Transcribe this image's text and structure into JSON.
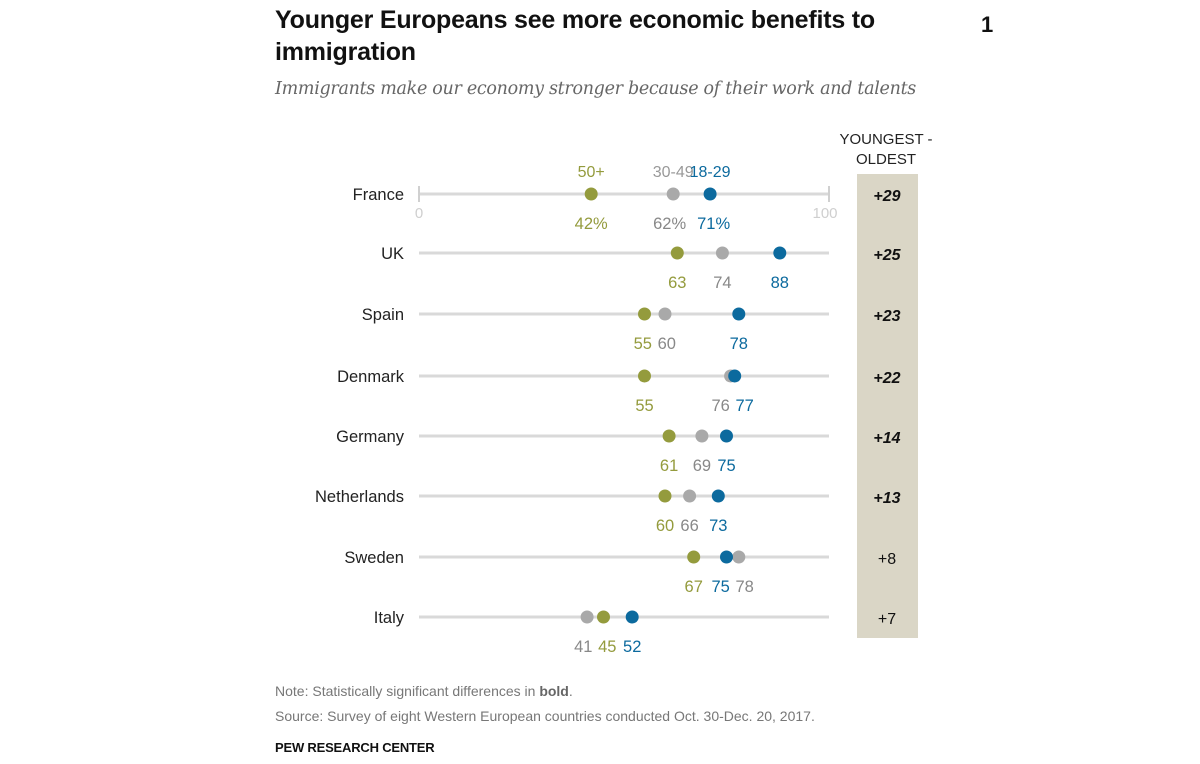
{
  "chart_data": {
    "type": "dot-plot",
    "title": "Younger Europeans see more economic benefits to immigration",
    "subtitle": "Immigrants make our economy stronger because of their work and talents",
    "xlim": [
      0,
      100
    ],
    "axis_ticks": [
      "0",
      "100"
    ],
    "diff_header": [
      "YOUNGEST -",
      "OLDEST"
    ],
    "series": [
      {
        "name": "50+",
        "key": "age50",
        "color": "#949b3d"
      },
      {
        "name": "30-49",
        "key": "age30",
        "color": "#a9a9a9"
      },
      {
        "name": "18-29",
        "key": "age18",
        "color": "#0c6a9e"
      }
    ],
    "categories": [
      "France",
      "UK",
      "Spain",
      "Denmark",
      "Germany",
      "Netherlands",
      "Sweden",
      "Italy"
    ],
    "rows": [
      {
        "country": "France",
        "age18": 71,
        "age30": 62,
        "age50": 42,
        "diff": "+29",
        "significant": true,
        "labels": {
          "age18": "71%",
          "age30": "62%",
          "age50": "42%"
        }
      },
      {
        "country": "UK",
        "age18": 88,
        "age30": 74,
        "age50": 63,
        "diff": "+25",
        "significant": true,
        "labels": {
          "age18": "88",
          "age30": "74",
          "age50": "63"
        }
      },
      {
        "country": "Spain",
        "age18": 78,
        "age30": 60,
        "age50": 55,
        "diff": "+23",
        "significant": true,
        "labels": {
          "age18": "78",
          "age30": "60",
          "age50": "55"
        }
      },
      {
        "country": "Denmark",
        "age18": 77,
        "age30": 76,
        "age50": 55,
        "diff": "+22",
        "significant": true,
        "labels": {
          "age18": "77",
          "age30": "76",
          "age50": "55"
        }
      },
      {
        "country": "Germany",
        "age18": 75,
        "age30": 69,
        "age50": 61,
        "diff": "+14",
        "significant": true,
        "labels": {
          "age18": "75",
          "age30": "69",
          "age50": "61"
        }
      },
      {
        "country": "Netherlands",
        "age18": 73,
        "age30": 66,
        "age50": 60,
        "diff": "+13",
        "significant": true,
        "labels": {
          "age18": "73",
          "age30": "66",
          "age50": "60"
        }
      },
      {
        "country": "Sweden",
        "age18": 75,
        "age30": 78,
        "age50": 67,
        "diff": "+8",
        "significant": false,
        "labels": {
          "age18": "75",
          "age30": "78",
          "age50": "67"
        }
      },
      {
        "country": "Italy",
        "age18": 52,
        "age30": 41,
        "age50": 45,
        "diff": "+7",
        "significant": false,
        "labels": {
          "age18": "52",
          "age30": "41",
          "age50": "45"
        }
      }
    ]
  },
  "stray_glyph": "1",
  "footer": {
    "note_prefix": "Note: Statistically significant differences in ",
    "note_bold": "bold",
    "note_suffix": ".",
    "source": "Source: Survey of eight Western European countries conducted Oct. 30-Dec. 20, 2017.",
    "org": "PEW RESEARCH CENTER"
  }
}
